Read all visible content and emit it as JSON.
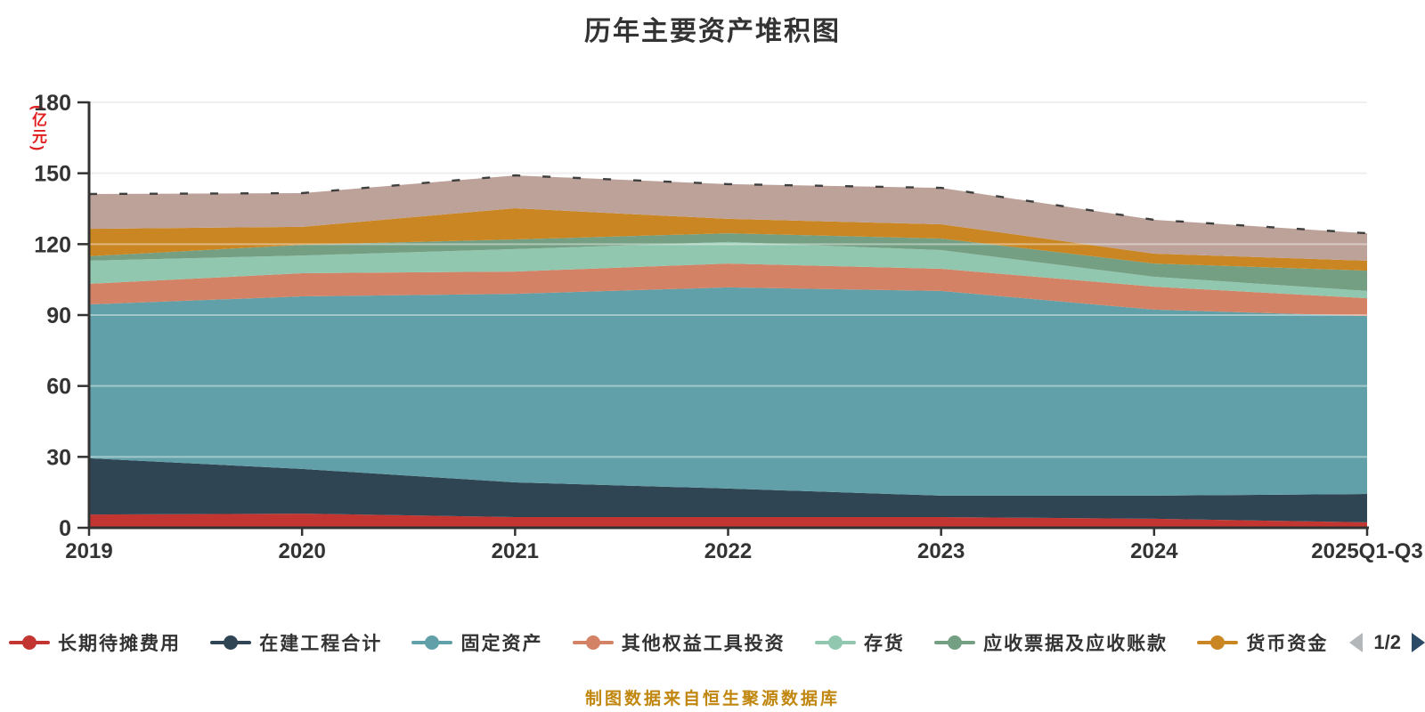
{
  "title": "历年主要资产堆积图",
  "y_axis_name": "(亿元)",
  "footer": "制图数据来自恒生聚源数据库",
  "pagination": {
    "page": "1/2",
    "prev_icon": "left-arrow",
    "next_icon": "right-arrow"
  },
  "colors": {
    "title_text": "#333333",
    "axis_text": "#333333",
    "axis_line": "#333333",
    "y_name_text": "#e01f1f",
    "footer_text": "#c0860e",
    "gridline": "#e3e3e3",
    "pager_prev": "#b4b7ba",
    "pager_next": "#2b4b66"
  },
  "chart_data": {
    "type": "area",
    "stacked": true,
    "title": "历年主要资产堆积图",
    "x_labels": [
      "2019",
      "2020",
      "2021",
      "2022",
      "2023",
      "2024",
      "2025Q1-Q3"
    ],
    "y_ticks": [
      0,
      30,
      60,
      90,
      120,
      150,
      180
    ],
    "ylim": [
      0,
      180
    ],
    "y_unit": "亿元",
    "grid": true,
    "legend_position": "bottom",
    "legend_page": "1/2",
    "series": [
      {
        "name": "长期待摊费用",
        "color": "#c23531",
        "in_visible_legend": true,
        "values": [
          5.6,
          6.0,
          4.5,
          4.5,
          4.5,
          3.8,
          2.3
        ]
      },
      {
        "name": "在建工程合计",
        "color": "#2f4554",
        "in_visible_legend": true,
        "values": [
          23.8,
          18.9,
          14.7,
          12.1,
          9.1,
          9.8,
          12.0
        ]
      },
      {
        "name": "固定资产",
        "color": "#61a0a8",
        "in_visible_legend": true,
        "values": [
          65.1,
          73.0,
          79.8,
          85.1,
          86.6,
          78.7,
          75.3
        ]
      },
      {
        "name": "其他权益工具投资",
        "color": "#d48265",
        "in_visible_legend": true,
        "values": [
          8.7,
          9.8,
          9.4,
          10.1,
          9.4,
          9.7,
          7.5
        ]
      },
      {
        "name": "存货",
        "color": "#91c7ae",
        "in_visible_legend": true,
        "values": [
          9.8,
          7.5,
          9.5,
          9.1,
          7.9,
          4.2,
          3.1
        ]
      },
      {
        "name": "应收票据及应收账款",
        "color": "#749f83",
        "in_visible_legend": true,
        "values": [
          1.9,
          4.5,
          4.1,
          3.7,
          4.9,
          5.6,
          8.6
        ]
      },
      {
        "name": "货币资金",
        "color": "#ca8622",
        "in_visible_legend": true,
        "values": [
          11.6,
          7.6,
          13.2,
          6.1,
          6.0,
          4.2,
          4.2
        ]
      },
      {
        "name": "",
        "color": "#bda29a",
        "in_visible_legend": false,
        "values": [
          14.7,
          14.3,
          13.9,
          14.7,
          15.4,
          14.3,
          11.6
        ]
      }
    ]
  }
}
